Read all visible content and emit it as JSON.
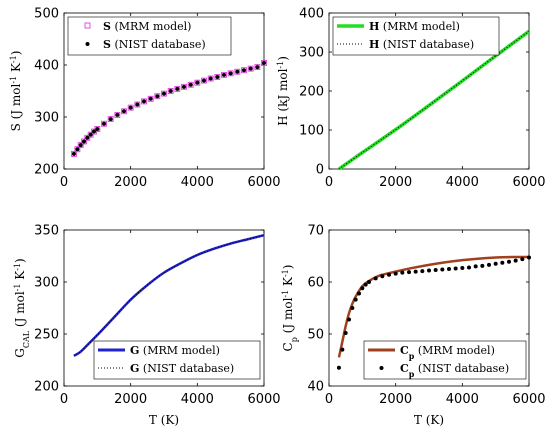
{
  "chart_data": [
    {
      "type": "line",
      "id": "S",
      "xlabel": "",
      "ylabel": "S (J mol⁻¹ K⁻¹)",
      "xlim": [
        0,
        6000
      ],
      "ylim": [
        200,
        500
      ],
      "xticks": [
        "0",
        "2000",
        "4000",
        "6000"
      ],
      "yticks": [
        "200",
        "300",
        "400",
        "500"
      ],
      "legend_position": "top-left",
      "series": [
        {
          "name": "S (MRM model)",
          "style": "square-markers",
          "color": "#e040e0",
          "x": [
            298,
            400,
            500,
            600,
            700,
            800,
            900,
            1000,
            1200,
            1400,
            1600,
            1800,
            2000,
            2200,
            2400,
            2600,
            2800,
            3000,
            3200,
            3400,
            3600,
            3800,
            4000,
            4200,
            4400,
            4600,
            4800,
            5000,
            5200,
            5400,
            5600,
            5800,
            6000
          ],
          "y": [
            229,
            238,
            246,
            253,
            260,
            266,
            272,
            277,
            287,
            296,
            304,
            311,
            318,
            324,
            330,
            335,
            340,
            345,
            350,
            354,
            358,
            362,
            366,
            370,
            374,
            377,
            381,
            384,
            387,
            390,
            393,
            396,
            404
          ]
        },
        {
          "name": "S (NIST database)",
          "style": "dot-markers",
          "color": "#000000",
          "x": [
            298,
            400,
            500,
            600,
            700,
            800,
            900,
            1000,
            1200,
            1400,
            1600,
            1800,
            2000,
            2200,
            2400,
            2600,
            2800,
            3000,
            3200,
            3400,
            3600,
            3800,
            4000,
            4200,
            4400,
            4600,
            4800,
            5000,
            5200,
            5400,
            5600,
            5800,
            6000
          ],
          "y": [
            229,
            238,
            246,
            253,
            260,
            266,
            272,
            277,
            287,
            296,
            304,
            311,
            318,
            324,
            330,
            335,
            340,
            345,
            350,
            354,
            358,
            362,
            366,
            370,
            374,
            377,
            381,
            384,
            387,
            390,
            393,
            396,
            404
          ]
        }
      ]
    },
    {
      "type": "line",
      "id": "H",
      "xlabel": "",
      "ylabel": "H (kJ mol⁻¹)",
      "xlim": [
        0,
        6000
      ],
      "ylim": [
        0,
        400
      ],
      "xticks": [
        "0",
        "2000",
        "4000",
        "6000"
      ],
      "yticks": [
        "0",
        "100",
        "200",
        "300",
        "400"
      ],
      "legend_position": "top-left",
      "series": [
        {
          "name": "H (MRM model)",
          "style": "thick-line",
          "color": "#22dd22",
          "x": [
            298,
            1000,
            2000,
            3000,
            4000,
            5000,
            6000
          ],
          "y": [
            0,
            42,
            101,
            163,
            226,
            290,
            353
          ]
        },
        {
          "name": "H (NIST database)",
          "style": "dotted-line",
          "color": "#000000",
          "x": [
            298,
            1000,
            2000,
            3000,
            4000,
            5000,
            6000
          ],
          "y": [
            0,
            42,
            101,
            163,
            226,
            290,
            353
          ]
        }
      ]
    },
    {
      "type": "line",
      "id": "G",
      "xlabel": "T (K)",
      "ylabel": "G_CAL (J mol⁻¹ K⁻¹)",
      "xlim": [
        0,
        6000
      ],
      "ylim": [
        200,
        350
      ],
      "xticks": [
        "0",
        "2000",
        "4000",
        "6000"
      ],
      "yticks": [
        "200",
        "250",
        "300",
        "350"
      ],
      "legend_position": "bottom-right",
      "series": [
        {
          "name": "G (MRM model)",
          "style": "thick-line",
          "color": "#2222cc",
          "x": [
            298,
            500,
            750,
            1000,
            1500,
            2000,
            2500,
            3000,
            3500,
            4000,
            4500,
            5000,
            5500,
            6000
          ],
          "y": [
            229,
            233,
            241,
            249,
            266,
            283,
            297,
            309,
            318,
            326,
            332,
            337,
            341,
            345
          ]
        },
        {
          "name": "G (NIST database)",
          "style": "dotted-line",
          "color": "#000000",
          "x": [
            298,
            500,
            750,
            1000,
            1500,
            2000,
            2500,
            3000,
            3500,
            4000,
            4500,
            5000,
            5500,
            6000
          ],
          "y": [
            229,
            233,
            241,
            249,
            266,
            283,
            297,
            309,
            318,
            326,
            332,
            337,
            341,
            345
          ]
        }
      ]
    },
    {
      "type": "line",
      "id": "Cp",
      "xlabel": "T (K)",
      "ylabel": "C_p (J mol⁻¹ K⁻¹)",
      "xlim": [
        0,
        6000
      ],
      "ylim": [
        40,
        70
      ],
      "xticks": [
        "0",
        "2000",
        "4000",
        "6000"
      ],
      "yticks": [
        "40",
        "50",
        "60",
        "70"
      ],
      "legend_position": "bottom-right",
      "series": [
        {
          "name": "Cp (MRM model)",
          "style": "thick-line",
          "color": "#a0401e",
          "x": [
            298,
            400,
            500,
            600,
            700,
            800,
            1000,
            1200,
            1500,
            2000,
            2500,
            3000,
            3500,
            4000,
            4500,
            5000,
            5500,
            6000
          ],
          "y": [
            45.5,
            48.5,
            51.5,
            54,
            55.8,
            57.2,
            59.2,
            60.2,
            61.2,
            62,
            62.7,
            63.3,
            63.8,
            64.2,
            64.5,
            64.7,
            64.8,
            64.8
          ]
        },
        {
          "name": "Cp (NIST database)",
          "style": "dot-markers",
          "color": "#000000",
          "x": [
            298,
            400,
            500,
            600,
            700,
            800,
            900,
            1000,
            1100,
            1200,
            1400,
            1600,
            1800,
            2000,
            2200,
            2400,
            2600,
            2800,
            3000,
            3200,
            3400,
            3600,
            3800,
            4000,
            4200,
            4400,
            4600,
            4800,
            5000,
            5200,
            5400,
            5600,
            5800,
            6000
          ],
          "y": [
            43.5,
            47,
            50.2,
            52.8,
            55,
            56.6,
            57.8,
            58.8,
            59.5,
            60,
            60.7,
            61.1,
            61.4,
            61.6,
            61.8,
            61.9,
            62,
            62.1,
            62.2,
            62.3,
            62.4,
            62.5,
            62.6,
            62.7,
            62.8,
            63,
            63.1,
            63.3,
            63.5,
            63.7,
            63.9,
            64.1,
            64.4,
            64.7
          ]
        }
      ]
    }
  ]
}
